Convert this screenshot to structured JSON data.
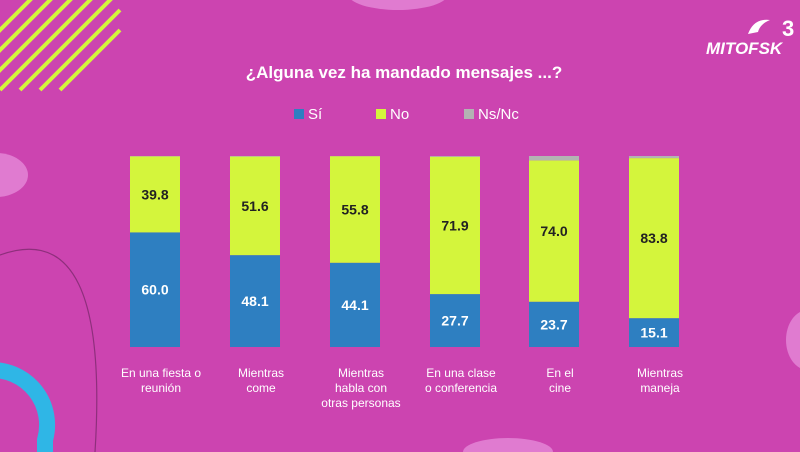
{
  "chart_data": {
    "type": "bar",
    "stacked": true,
    "title": "¿Alguna vez ha mandado mensajes ...?",
    "categories": [
      [
        "En una fiesta o",
        "reunión"
      ],
      [
        "Mientras",
        "come"
      ],
      [
        "Mientras",
        "habla con",
        "otras personas"
      ],
      [
        "En una clase",
        "o conferencia"
      ],
      [
        "En el",
        "cine"
      ],
      [
        "Mientras",
        "maneja"
      ]
    ],
    "series": [
      {
        "name": "Sí",
        "color": "#2e7fc1",
        "values": [
          60.0,
          48.1,
          44.1,
          27.7,
          23.7,
          15.1
        ]
      },
      {
        "name": "No",
        "color": "#d4f53c",
        "values": [
          39.8,
          51.6,
          55.8,
          71.9,
          74.0,
          83.8
        ]
      },
      {
        "name": "Ns/Nc",
        "color": "#b3b3b3",
        "values": [
          0.2,
          0.3,
          0.1,
          0.4,
          2.3,
          1.1
        ]
      }
    ],
    "labels": {
      "Sí": [
        "60.0",
        "48.1",
        "44.1",
        "27.7",
        "23.7",
        "15.1"
      ],
      "No": [
        "39.8",
        "51.6",
        "55.8",
        "71.9",
        "74.0",
        "83.8"
      ]
    },
    "ylim": [
      0,
      100
    ],
    "legend": "top-center"
  },
  "logo": {
    "number": "3",
    "text": "MITOFSK"
  },
  "colors": {
    "background": "#cc44b0",
    "decor_pink": "#e07bd0",
    "decor_blue": "#2fb6e6",
    "decor_yellow": "#d4f53c"
  }
}
